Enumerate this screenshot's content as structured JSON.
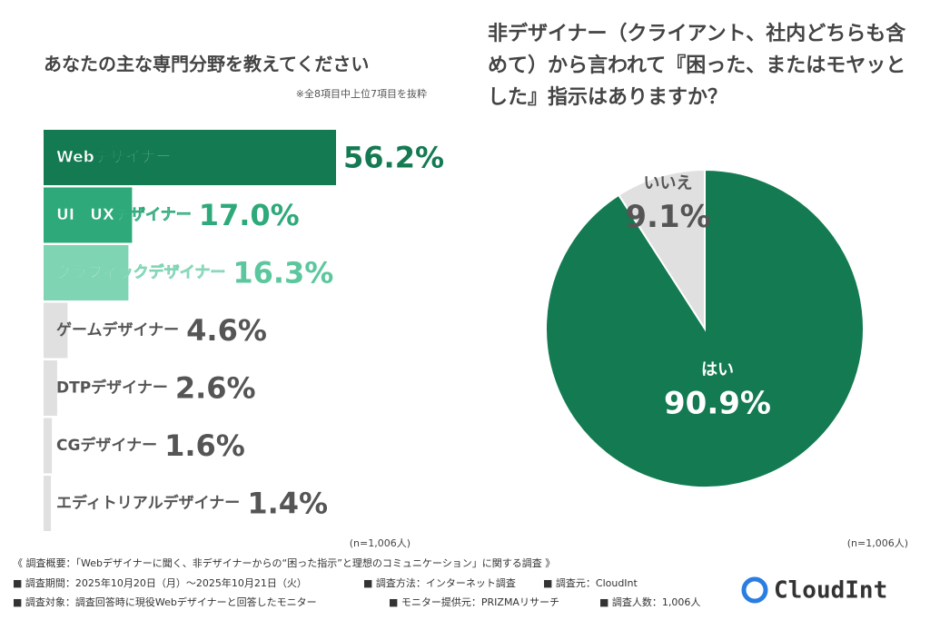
{
  "chart_data": [
    {
      "type": "bar",
      "title": "あなたの主な専門分野を教えてください",
      "note": "※全8項目中上位7項目を抜粋",
      "sample": "(n=1,006人)",
      "categories": [
        "Webデザイナー",
        "UI／UXデザイナー",
        "グラフィックデザイナー",
        "ゲームデザイナー",
        "DTPデザイナー",
        "CGデザイナー",
        "エディトリアルデザイナー"
      ],
      "values": [
        56.2,
        17.0,
        16.3,
        4.6,
        2.6,
        1.6,
        1.4
      ],
      "value_labels": [
        "56.2%",
        "17.0%",
        "16.3%",
        "4.6%",
        "2.6%",
        "1.6%",
        "1.4%"
      ],
      "colors": [
        "#137a52",
        "#2eaa7a",
        "#7fd4b4",
        "#e0e0e0",
        "#e0e0e0",
        "#e0e0e0",
        "#e0e0e0"
      ],
      "label_colors": [
        "#137a52",
        "#2eaa7a",
        "#5cc79e",
        "#555555",
        "#555555",
        "#555555",
        "#555555"
      ],
      "text_colors": [
        "#ffffff",
        "#ffffff",
        "#ffffff",
        "#555555",
        "#555555",
        "#555555",
        "#555555"
      ]
    },
    {
      "type": "pie",
      "title": "非デザイナー（クライアント、社内どちらも含めて）から言われて『困った、またはモヤッとした』指示はありますか？",
      "sample": "(n=1,006人)",
      "categories": [
        "はい",
        "いいえ"
      ],
      "values": [
        90.9,
        9.1
      ],
      "value_labels": [
        "90.9%",
        "9.1%"
      ],
      "colors": [
        "#137a52",
        "#e0e0e0"
      ],
      "label_colors": [
        "#ffffff",
        "#555555"
      ]
    }
  ],
  "footer": {
    "summary": "《 調査概要：「Webデザイナーに聞く、非デザイナーからの“困った指示”と理想のコミュニケーション」に関する調査 》",
    "items": [
      "■ 調査期間：2025年10月20日（月）～2025年10月21日（火）",
      "■ 調査方法：インターネット調査",
      "■ 調査元：CloudInt",
      "■ 調査対象：調査回答時に現役Webデザイナーと回答したモニター",
      "■ モニター提供元：PRIZMAリサーチ",
      "■ 調査人数：1,006人"
    ],
    "logo": "CloudInt"
  }
}
